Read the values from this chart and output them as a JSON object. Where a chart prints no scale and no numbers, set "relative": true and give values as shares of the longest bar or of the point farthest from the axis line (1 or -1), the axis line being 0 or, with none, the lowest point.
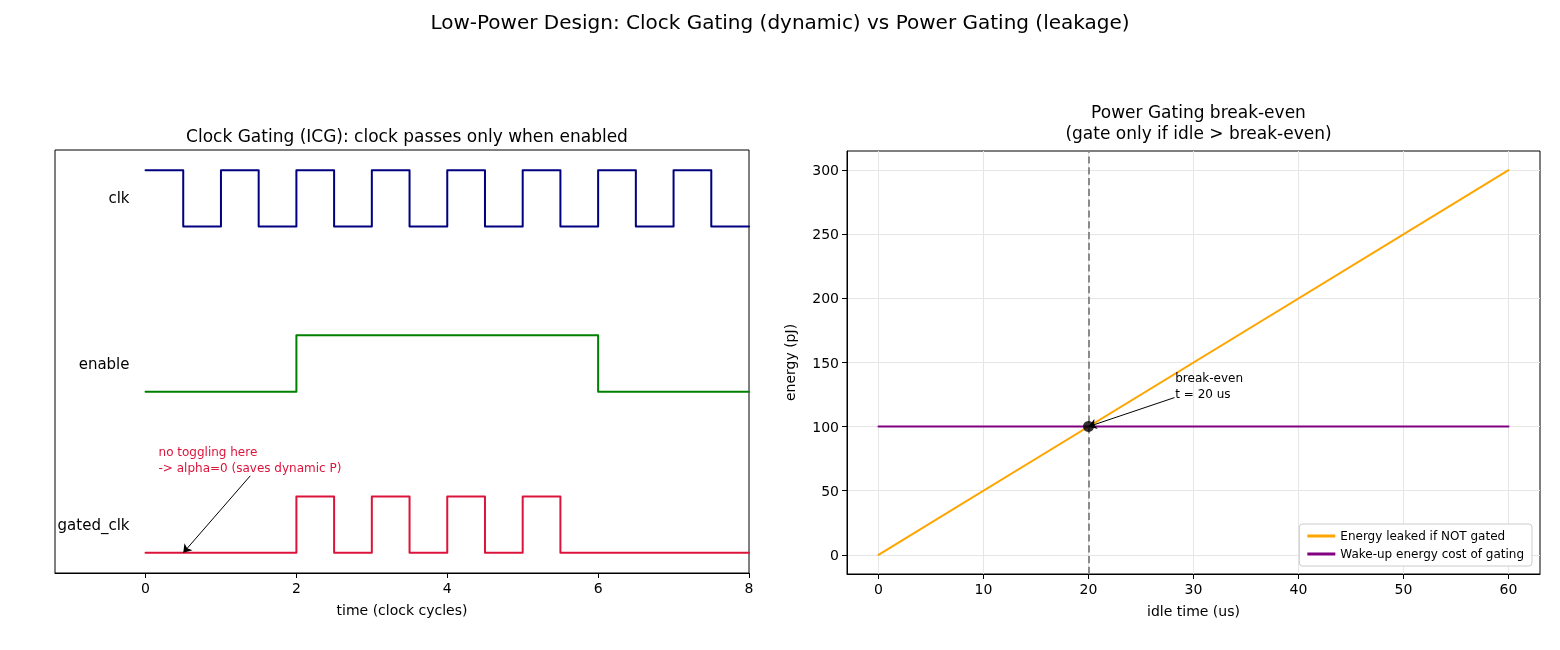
{
  "chart_data": [
    {
      "type": "step",
      "title": "Clock Gating (ICG): clock passes only when enabled",
      "xlabel": "time (clock cycles)",
      "xlim": [
        -1.2,
        8
      ],
      "xticks": [
        0,
        2,
        4,
        6,
        8
      ],
      "relative": true,
      "grid": false,
      "series": [
        {
          "name": "clk",
          "color": "#000080",
          "x": [
            0,
            0.5,
            1,
            1.5,
            2,
            2.5,
            3,
            3.5,
            4,
            4.5,
            5,
            5.5,
            6,
            6.5,
            7,
            7.5,
            8
          ],
          "values": [
            1,
            0.86,
            1,
            0.86,
            1,
            0.86,
            1,
            0.86,
            1,
            0.86,
            1,
            0.86,
            1,
            0.86,
            1,
            0.86,
            0.86
          ]
        },
        {
          "name": "enable",
          "color": "#008000",
          "x": [
            0,
            2,
            6,
            8
          ],
          "values": [
            0.45,
            0.59,
            0.45,
            0.45
          ]
        },
        {
          "name": "gated_clk",
          "color": "#dc143c",
          "x": [
            0,
            2,
            2.5,
            3,
            3.5,
            4,
            4.5,
            5,
            5.5,
            8
          ],
          "values": [
            0.05,
            0.19,
            0.05,
            0.19,
            0.05,
            0.19,
            0.05,
            0.19,
            0.05,
            0.05
          ]
        }
      ],
      "annotations": [
        "Low-Power Design: Clock Gating (dynamic) vs Power Gating (leakage)",
        {
          "text": "no toggling here\n-> alpha=0 (saves dynamic P)",
          "x": 0.5,
          "y": 0.05
        }
      ]
    },
    {
      "type": "line",
      "title": "Power Gating break-even\n(gate only if idle > break-even)",
      "xlabel": "idle time (us)",
      "ylabel": "energy (pJ)",
      "xlim": [
        -3,
        63
      ],
      "xticks": [
        0,
        10,
        20,
        30,
        40,
        50,
        60
      ],
      "ylim": [
        -15,
        315
      ],
      "yticks": [
        0,
        50,
        100,
        150,
        200,
        250,
        300
      ],
      "grid": true,
      "legend": "bottom right",
      "series": [
        {
          "name": "Energy leaked if NOT gated",
          "color": "#ffa500",
          "x": [
            0,
            60
          ],
          "values": [
            0,
            300
          ]
        },
        {
          "name": "Wake-up energy cost of gating",
          "color": "#800080",
          "x": [
            0,
            60
          ],
          "values": [
            100,
            100
          ]
        },
        {
          "type": "scatter",
          "marker": "circle",
          "color": "#000000",
          "x": [
            20
          ],
          "values": [
            100
          ]
        }
      ],
      "ref_lines": [
        {
          "axis": "x",
          "value": 20,
          "color": "#808080",
          "line_style": "dashed"
        }
      ],
      "annotations": [
        {
          "text": "break-even\nt = 20 us",
          "x": 20,
          "y": 100
        }
      ]
    }
  ]
}
